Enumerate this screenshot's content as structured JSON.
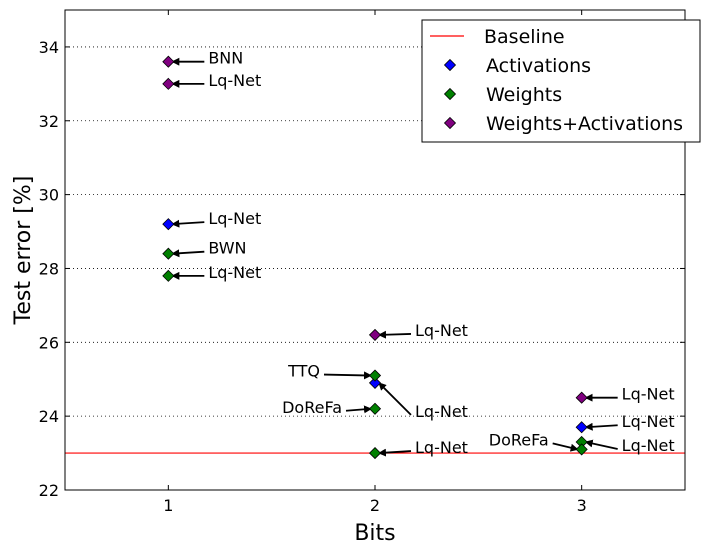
{
  "chart_data": {
    "type": "scatter",
    "xlabel": "Bits",
    "ylabel": "Test error [%]",
    "xlim": [
      0.5,
      3.5
    ],
    "ylim": [
      22,
      35
    ],
    "xticks": [
      1,
      2,
      3
    ],
    "yticks": [
      22,
      24,
      26,
      28,
      30,
      32,
      34
    ],
    "grid": "horizontal dotted",
    "legend_position": "top-right",
    "baseline": {
      "name": "Baseline",
      "y": 23.0,
      "color": "#ff0000"
    },
    "series": [
      {
        "name": "Activations",
        "color": "#0000ff",
        "points": [
          {
            "x": 1,
            "y": 29.2,
            "label": "Lq-Net"
          },
          {
            "x": 2,
            "y": 24.9,
            "label": "Lq-Net"
          },
          {
            "x": 3,
            "y": 23.7,
            "label": "Lq-Net"
          }
        ]
      },
      {
        "name": "Weights",
        "color": "#008000",
        "points": [
          {
            "x": 1,
            "y": 28.4,
            "label": "BWN"
          },
          {
            "x": 1,
            "y": 27.8,
            "label": "Lq-Net"
          },
          {
            "x": 2,
            "y": 25.1,
            "label": "TTQ"
          },
          {
            "x": 2,
            "y": 24.2,
            "label": "DoReFa"
          },
          {
            "x": 2,
            "y": 23.0,
            "label": "Lq-Net"
          },
          {
            "x": 3,
            "y": 23.3,
            "label": "Lq-Net"
          },
          {
            "x": 3,
            "y": 23.1,
            "label": "DoReFa"
          }
        ]
      },
      {
        "name": "Weights+Activations",
        "color": "#800080",
        "points": [
          {
            "x": 1,
            "y": 33.6,
            "label": "BNN"
          },
          {
            "x": 1,
            "y": 33.0,
            "label": "Lq-Net"
          },
          {
            "x": 2,
            "y": 26.2,
            "label": "Lq-Net"
          },
          {
            "x": 3,
            "y": 24.5,
            "label": "Lq-Net"
          }
        ]
      }
    ]
  }
}
